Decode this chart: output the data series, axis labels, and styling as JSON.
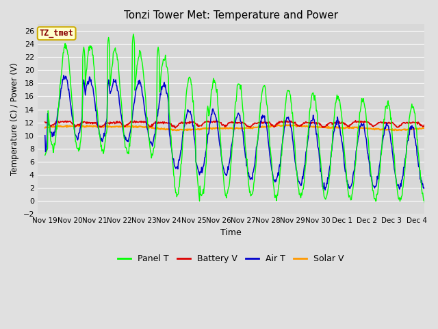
{
  "title": "Tonzi Tower Met: Temperature and Power",
  "xlabel": "Time",
  "ylabel": "Temperature (C) / Power (V)",
  "ylim": [
    -2,
    27
  ],
  "yticks": [
    -2,
    0,
    2,
    4,
    6,
    8,
    10,
    12,
    14,
    16,
    18,
    20,
    22,
    24,
    26
  ],
  "fig_bg": "#e0e0e0",
  "plot_bg": "#d8d8d8",
  "grid_color": "#ffffff",
  "annotation_text": "TZ_tmet",
  "annotation_bg": "#ffffcc",
  "annotation_border": "#ccaa00",
  "annotation_text_color": "#880000",
  "colors": {
    "panel_t": "#00ff00",
    "battery_v": "#dd0000",
    "air_t": "#0000cc",
    "solar_v": "#ff9900"
  },
  "legend_labels": [
    "Panel T",
    "Battery V",
    "Air T",
    "Solar V"
  ],
  "xtick_labels": [
    "Nov 19",
    "Nov 20",
    "Nov 21",
    "Nov 22",
    "Nov 23",
    "Nov 24",
    "Nov 25",
    "Nov 26",
    "Nov 27",
    "Nov 28",
    "Nov 29",
    "Nov 30",
    "Dec 1",
    "Dec 2",
    "Dec 3",
    "Dec 4"
  ],
  "n_days": 16
}
